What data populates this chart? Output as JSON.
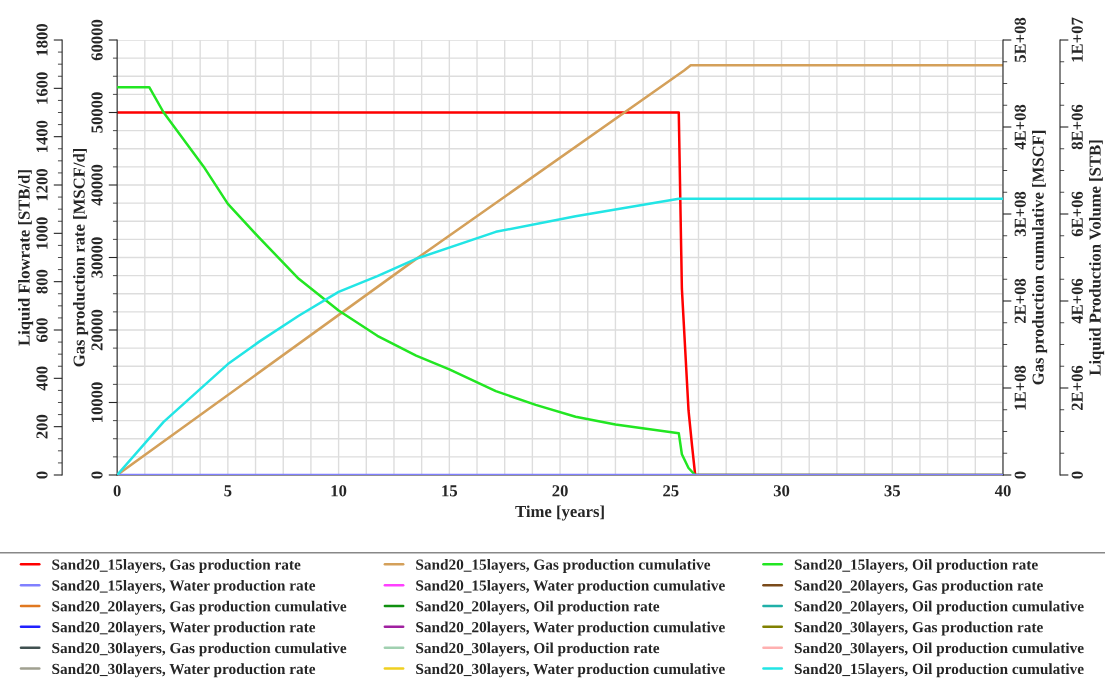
{
  "chart_data": [
    {
      "type": "line",
      "xlabel": "Time [years]",
      "ylabel": "Gas production rate [MSCF/d]",
      "y2label": "Gas production cumulative [MSCF]",
      "y3label": "Liquid Flowrate [STB/d]",
      "xlim": [
        0,
        40
      ],
      "xticks": [
        0,
        5,
        10,
        15,
        20,
        25,
        30,
        35,
        40
      ],
      "ylim": [
        0,
        60000
      ],
      "yticks": [
        0,
        10000,
        20000,
        30000,
        40000,
        50000,
        60000
      ],
      "y2lim": [
        0,
        500000000
      ],
      "y2ticks": [
        {
          "value": 0,
          "label": "0"
        },
        {
          "value": 100000000,
          "label": "1E+08"
        },
        {
          "value": 200000000,
          "label": "2E+08"
        },
        {
          "value": 300000000,
          "label": "3E+08"
        },
        {
          "value": 400000000,
          "label": "4E+08"
        },
        {
          "value": 500000000,
          "label": "5E+08"
        }
      ],
      "y3lim": [
        0,
        1800
      ],
      "y3ticks": [
        0,
        200,
        400,
        600,
        800,
        1000,
        1200,
        1400,
        1600,
        1800
      ],
      "grid": true,
      "legend": "bottom",
      "series": [
        {
          "name": "Sand20_15layers, Gas production rate",
          "color": "#ff0000",
          "x": [
            0,
            25.36,
            25.5,
            25.8,
            25.96,
            26.1,
            40
          ],
          "values": [
            50000,
            50000,
            25700,
            8900,
            4000,
            0,
            0
          ]
        },
        {
          "name": "Sand20_15layers, Gas production cumulative",
          "color": "#d4a05a",
          "axis": "y2",
          "x": [
            0,
            13.54,
            25.6,
            25.9,
            40
          ],
          "values": [
            0,
            249000000,
            465000000,
            471000000,
            471000000
          ]
        },
        {
          "name": "Sand20_15layers, Oil production rate",
          "color": "#22e622",
          "axis": "y3",
          "x": [
            0,
            1.45,
            2.1,
            3.9,
            5,
            6.4,
            8.2,
            10,
            11.75,
            13.5,
            15,
            17.1,
            18.9,
            20.7,
            22.5,
            25.36,
            25.5,
            25.8,
            26.1,
            40
          ],
          "values": [
            1605,
            1605,
            1500,
            1277,
            1122,
            983,
            812,
            681,
            576,
            494,
            437,
            347,
            290,
            241,
            209,
            173,
            86,
            29,
            0,
            0
          ]
        },
        {
          "name": "Sand20_15layers, Water production rate",
          "color": "#8080ff",
          "axis": "y3",
          "x": [
            0,
            40
          ],
          "values": [
            0,
            0
          ]
        },
        {
          "name": "Sand20_15layers, Water production cumulative",
          "color": "#ff40ff",
          "axis": "y3",
          "values": [
            null
          ]
        },
        {
          "name": "Sand20_20layers, Gas production rate",
          "color": "#7a4a1a",
          "values": [
            null
          ]
        },
        {
          "name": "Sand20_20layers, Gas production cumulative",
          "color": "#e07820",
          "axis": "y2",
          "values": [
            null
          ]
        },
        {
          "name": "Sand20_20layers, Oil production rate",
          "color": "#109010",
          "axis": "y3",
          "values": [
            null
          ]
        },
        {
          "name": "Sand20_20layers, Oil production cumulative",
          "color": "#20b0a8",
          "axis": "y3",
          "values": [
            null
          ]
        },
        {
          "name": "Sand20_20layers, Water production rate",
          "color": "#2020ff",
          "axis": "y3",
          "values": [
            null
          ]
        },
        {
          "name": "Sand20_20layers, Water production cumulative",
          "color": "#a020a0",
          "axis": "y3",
          "values": [
            null
          ]
        },
        {
          "name": "Sand20_30layers, Gas production rate",
          "color": "#808000",
          "values": [
            null
          ]
        },
        {
          "name": "Sand20_30layers, Gas production cumulative",
          "color": "#405050",
          "axis": "y2",
          "values": [
            null
          ]
        },
        {
          "name": "Sand20_30layers, Oil production rate",
          "color": "#a0d0b0",
          "axis": "y3",
          "values": [
            null
          ]
        },
        {
          "name": "Sand20_30layers, Oil production cumulative",
          "color": "#ffb0b0",
          "axis": "y3",
          "values": [
            null
          ]
        },
        {
          "name": "Sand20_30layers, Water production rate",
          "color": "#a0a090",
          "axis": "y3",
          "values": [
            null
          ]
        },
        {
          "name": "Sand20_30layers, Water production cumulative",
          "color": "#f0d020",
          "axis": "y3",
          "values": [
            null
          ]
        }
      ]
    },
    {
      "type": "line",
      "ylabel": "Liquid Production Volume [STB]",
      "xlim": [
        0,
        40
      ],
      "tick_labels": "y",
      "ylim": [
        0,
        10000000
      ],
      "yticks": [
        {
          "value": 0,
          "label": "0"
        },
        {
          "value": 2000000,
          "label": "2E+06"
        },
        {
          "value": 4000000,
          "label": "4E+06"
        },
        {
          "value": 6000000,
          "label": "6E+06"
        },
        {
          "value": 8000000,
          "label": "8E+06"
        },
        {
          "value": 10000000,
          "label": "1E+07"
        }
      ],
      "series": [
        {
          "name": "Sand20_15layers, Oil production cumulative",
          "color": "#22e5e5",
          "x": [
            0,
            2.1,
            5,
            6.4,
            8.2,
            10,
            11.75,
            13.5,
            17.1,
            20.7,
            25.36,
            40
          ],
          "values": [
            0,
            1220000,
            2550000,
            3060000,
            3660000,
            4210000,
            4570000,
            4970000,
            5590000,
            5950000,
            6350000,
            6350000
          ]
        }
      ]
    }
  ]
}
